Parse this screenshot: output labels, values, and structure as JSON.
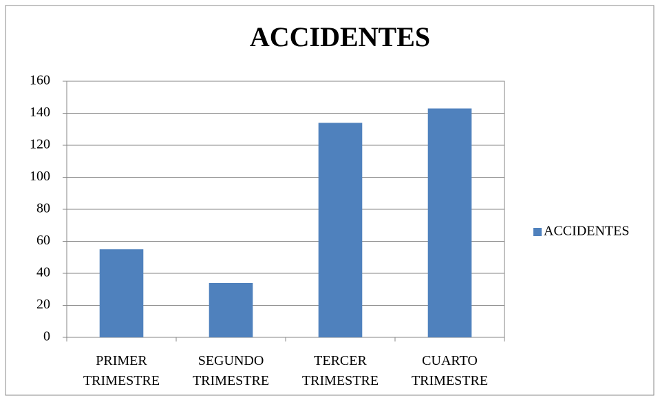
{
  "chart_data": {
    "type": "bar",
    "title": "ACCIDENTES",
    "categories": [
      "PRIMER TRIMESTRE",
      "SEGUNDO TRIMESTRE",
      "TERCER TRIMESTRE",
      "CUARTO TRIMESTRE"
    ],
    "series": [
      {
        "name": "ACCIDENTES",
        "color": "#4f81bd",
        "values": [
          55,
          34,
          134,
          143
        ]
      }
    ],
    "ylim": [
      0,
      160
    ],
    "yticks": [
      0,
      20,
      40,
      60,
      80,
      100,
      120,
      140,
      160
    ],
    "grid": true,
    "legend": "right"
  }
}
